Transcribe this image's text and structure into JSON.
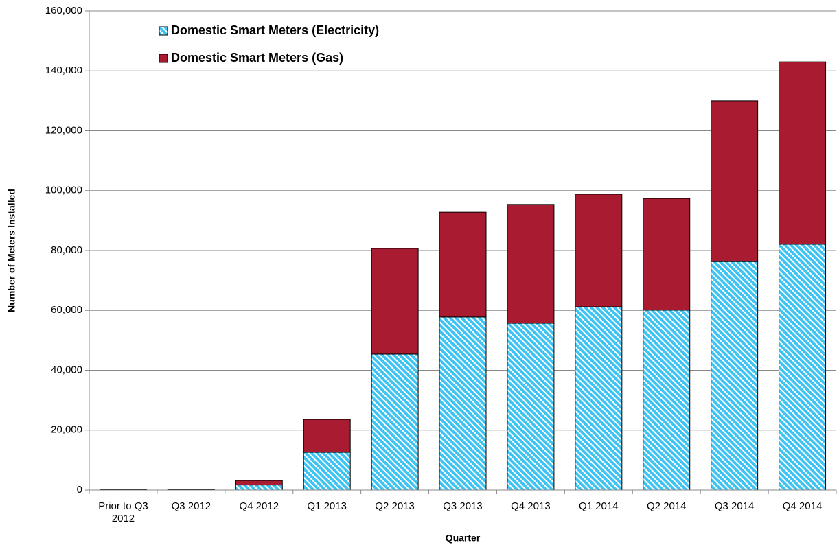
{
  "chart_data": {
    "type": "stacked_bar",
    "x_label": "Quarter",
    "y_label": "Number of Meters Installed",
    "categories": [
      "Prior to Q3 2012",
      "Q3 2012",
      "Q4 2012",
      "Q1 2013",
      "Q2 2013",
      "Q3 2013",
      "Q4 2013",
      "Q1 2014",
      "Q2 2014",
      "Q3 2014",
      "Q4 2014"
    ],
    "series": [
      {
        "name": "Domestic Smart Meters (Electricity)",
        "color": "#3ec3f2",
        "values": [
          200,
          100,
          1700,
          12600,
          45400,
          57800,
          55700,
          61200,
          60100,
          76300,
          82100
        ]
      },
      {
        "name": "Domestic Smart Meters (Gas)",
        "color": "#a91b30",
        "values": [
          100,
          50,
          1500,
          11000,
          35300,
          35000,
          39700,
          37600,
          37300,
          53700,
          60900
        ]
      }
    ],
    "ylim": [
      0,
      160000
    ],
    "yticks": [
      0,
      {
        "value": 20000,
        "label": "20,000"
      },
      {
        "value": 40000,
        "label": "40,000"
      },
      {
        "value": 60000,
        "label": "60,000"
      },
      {
        "value": 80000,
        "label": "80,000"
      },
      {
        "value": 100000,
        "label": "100,000"
      },
      {
        "value": 120000,
        "label": "120,000"
      },
      {
        "value": 140000,
        "label": "140,000"
      },
      {
        "value": 160000,
        "label": "160,000"
      }
    ],
    "grid": true
  }
}
